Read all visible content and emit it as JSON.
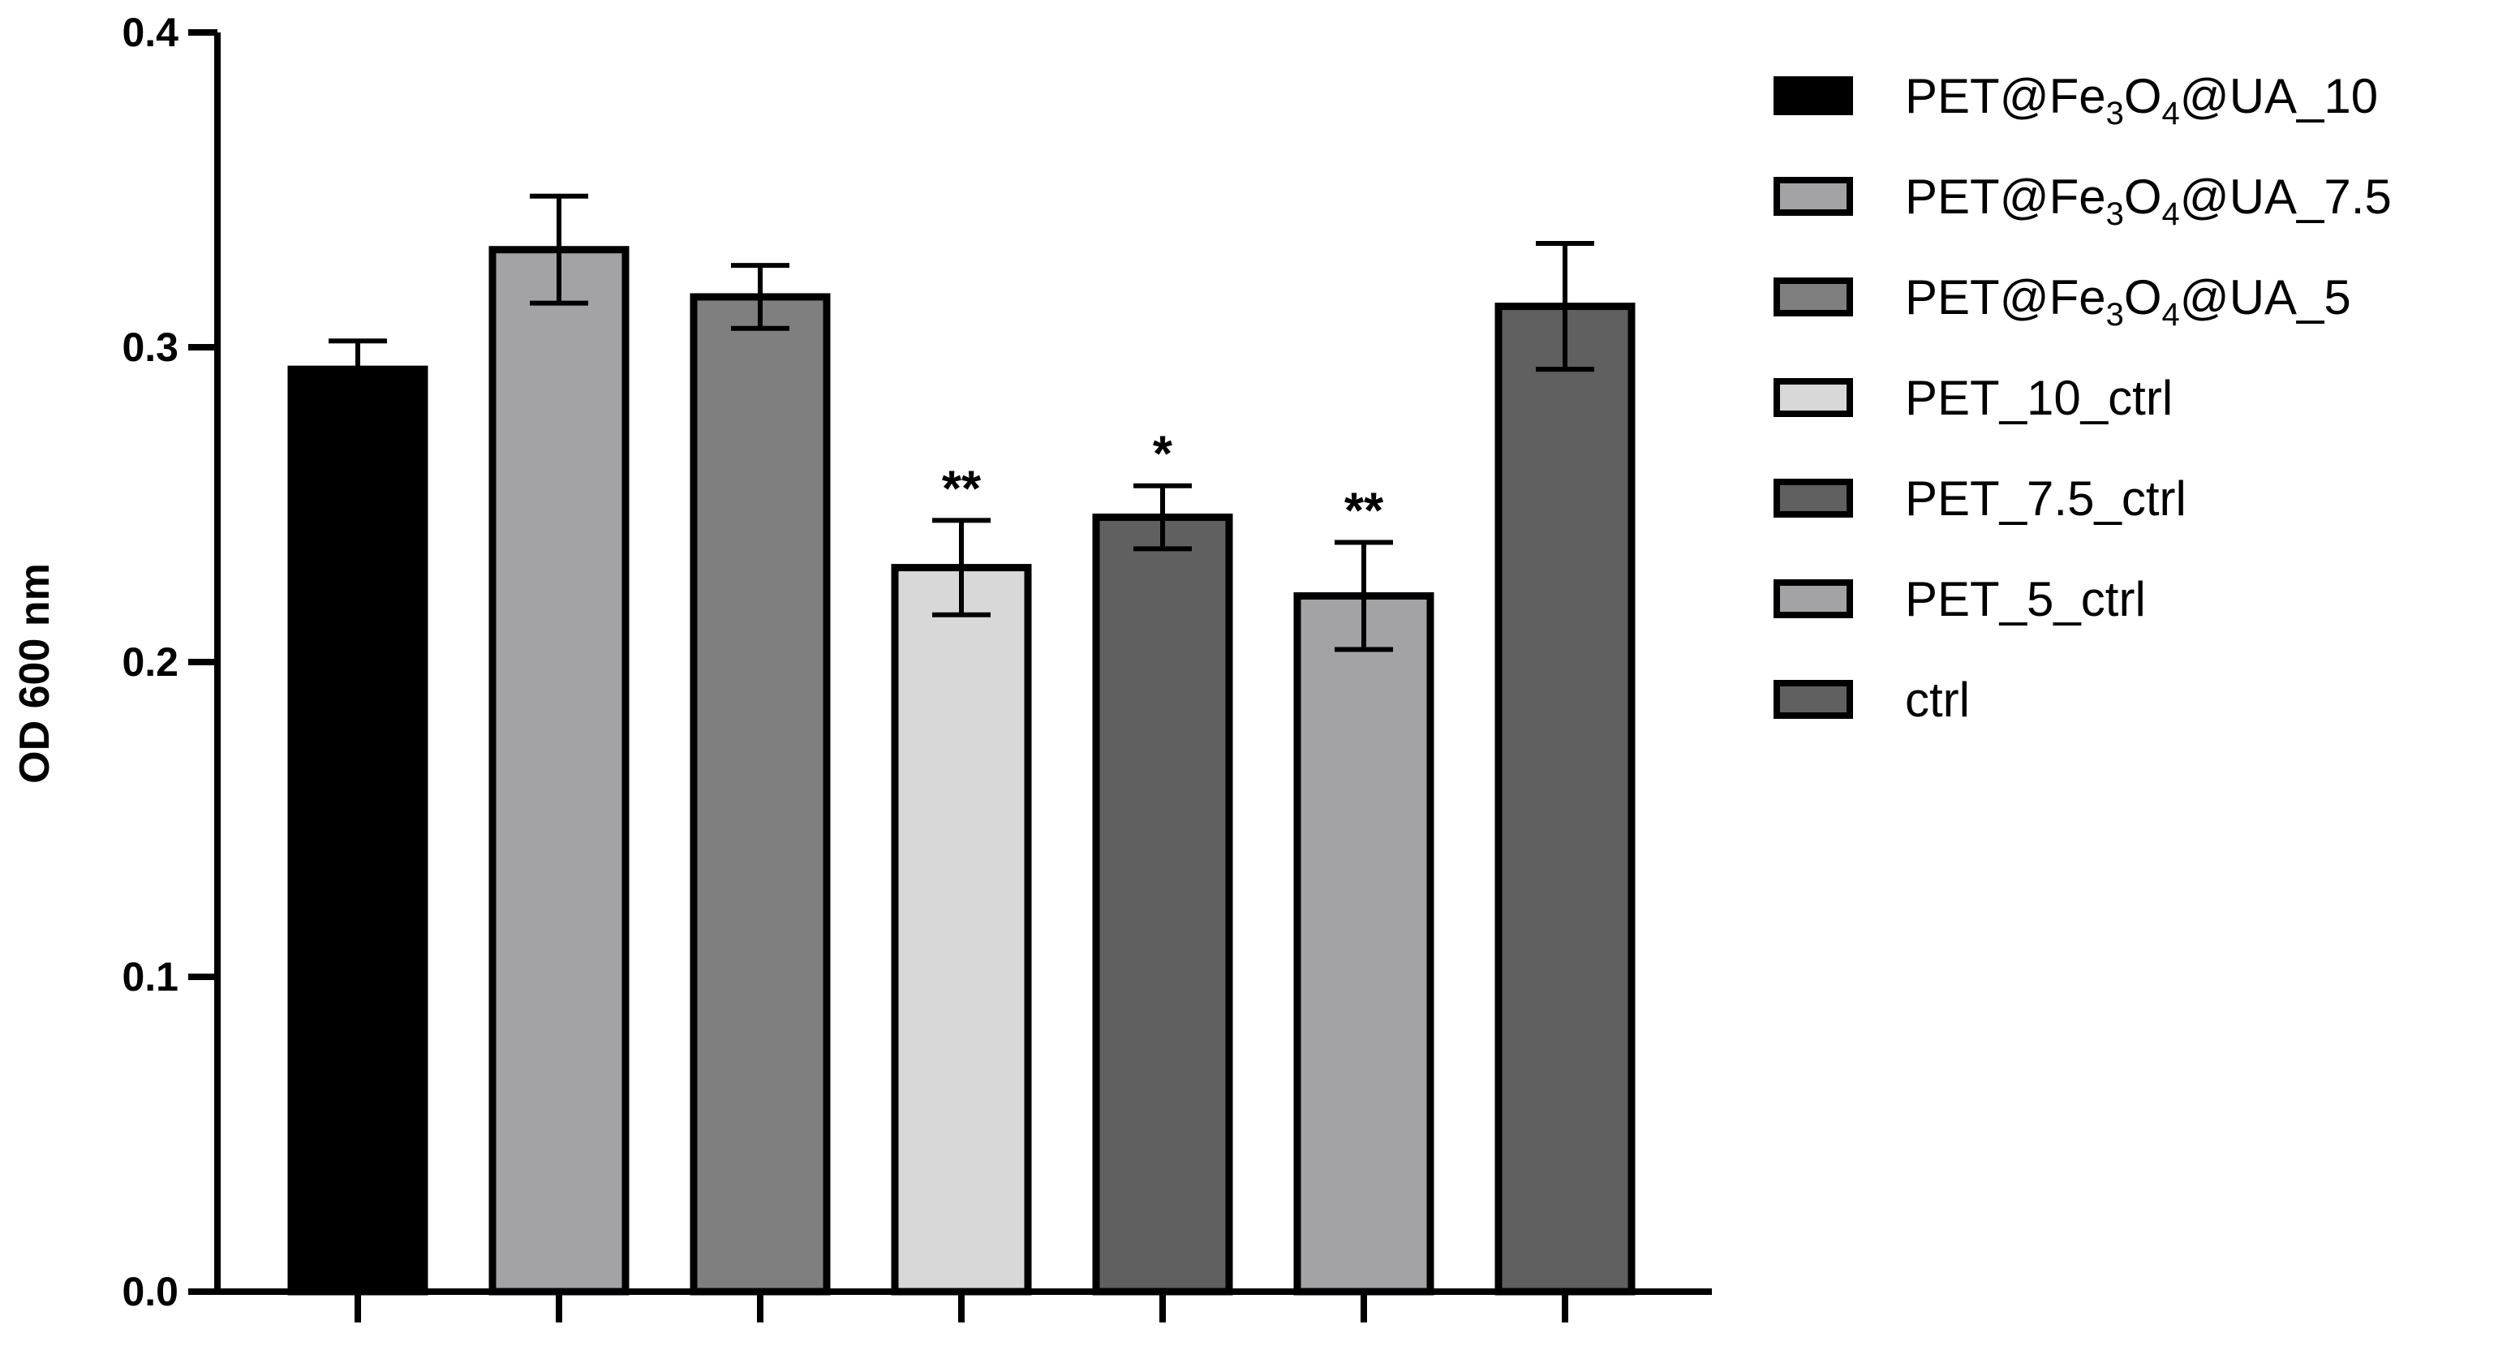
{
  "chart_data": {
    "type": "bar",
    "ylabel": "OD 600 nm",
    "ylim": [
      0,
      0.4
    ],
    "yticks": [
      "0.0",
      "0.1",
      "0.2",
      "0.3",
      "0.4"
    ],
    "grid": false,
    "legend_position": "right",
    "categories": [
      "PET@Fe3O4@UA_10",
      "PET@Fe3O4@UA_7.5",
      "PET@Fe3O4@UA_5",
      "PET_10_ctrl",
      "PET_7.5_ctrl",
      "PET_5_ctrl",
      "ctrl"
    ],
    "values": [
      0.293,
      0.331,
      0.316,
      0.23,
      0.246,
      0.221,
      0.313
    ],
    "errors": [
      0.009,
      0.017,
      0.01,
      0.015,
      0.01,
      0.017,
      0.02
    ],
    "significance": [
      "",
      "",
      "",
      "**",
      "*",
      "**",
      ""
    ],
    "colors": [
      "#000000",
      "#a3a3a6",
      "#7f7f7f",
      "#d8d8d8",
      "#606060",
      "#a3a3a6",
      "#606060"
    ],
    "legend": [
      {
        "base": "PET@Fe",
        "sub1": "3",
        "mid": "O",
        "sub2": "4",
        "end": "@UA_10"
      },
      {
        "base": "PET@Fe",
        "sub1": "3",
        "mid": "O",
        "sub2": "4",
        "end": "@UA_7.5"
      },
      {
        "base": "PET@Fe",
        "sub1": "3",
        "mid": "O",
        "sub2": "4",
        "end": "@UA_5"
      },
      {
        "text": "PET_10_ctrl"
      },
      {
        "text": "PET_7.5_ctrl"
      },
      {
        "text": "PET_5_ctrl"
      },
      {
        "text": "ctrl"
      }
    ]
  }
}
